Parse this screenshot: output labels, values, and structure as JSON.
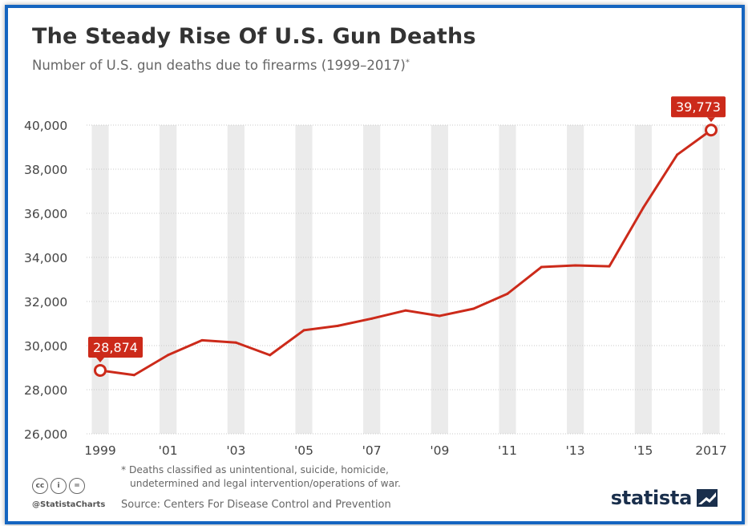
{
  "header": {
    "title": "The Steady Rise Of U.S. Gun Deaths",
    "subtitle": "Number of U.S. gun deaths due to firearms (1999–2017)",
    "subtitle_mark": "*"
  },
  "chart_data": {
    "type": "line",
    "title": "The Steady Rise Of U.S. Gun Deaths",
    "subtitle": "Number of U.S. gun deaths due to firearms (1999–2017)*",
    "x": [
      1999,
      2000,
      2001,
      2002,
      2003,
      2004,
      2005,
      2006,
      2007,
      2008,
      2009,
      2010,
      2011,
      2012,
      2013,
      2014,
      2015,
      2016,
      2017
    ],
    "x_tick_labels": [
      {
        "year": 1999,
        "label": "1999"
      },
      {
        "year": 2001,
        "label": "'01"
      },
      {
        "year": 2003,
        "label": "'03"
      },
      {
        "year": 2005,
        "label": "'05"
      },
      {
        "year": 2007,
        "label": "'07"
      },
      {
        "year": 2009,
        "label": "'09"
      },
      {
        "year": 2011,
        "label": "'11"
      },
      {
        "year": 2013,
        "label": "'13"
      },
      {
        "year": 2015,
        "label": "'15"
      },
      {
        "year": 2017,
        "label": "2017"
      }
    ],
    "series": [
      {
        "values": [
          28874,
          28663,
          29573,
          30242,
          30136,
          29569,
          30694,
          30896,
          31224,
          31593,
          31347,
          31672,
          32351,
          33563,
          33636,
          33594,
          36252,
          38658,
          39773
        ]
      }
    ],
    "ylim": [
      26000,
      40000
    ],
    "y_ticks": [
      26000,
      28000,
      30000,
      32000,
      34000,
      36000,
      38000,
      40000
    ],
    "y_tick_labels": [
      "26,000",
      "28,000",
      "30,000",
      "32,000",
      "34,000",
      "36,000",
      "38,000",
      "40,000"
    ],
    "annotations": [
      {
        "year": 1999,
        "label": "28,874"
      },
      {
        "year": 2017,
        "label": "39,773"
      }
    ],
    "grid": true,
    "alternating_year_bands": true,
    "line_color": "#cc2a1a",
    "band_color": "#ebebeb"
  },
  "footer": {
    "footnote_line1": "* Deaths classified as unintentional, suicide, homicide,",
    "footnote_line2": "undetermined and legal intervention/operations of war.",
    "source": "Source: Centers For Disease Control and Prevention",
    "handle": "@StatistaCharts",
    "cc_labels": [
      "cc",
      "i",
      "="
    ],
    "brand": "statista"
  }
}
